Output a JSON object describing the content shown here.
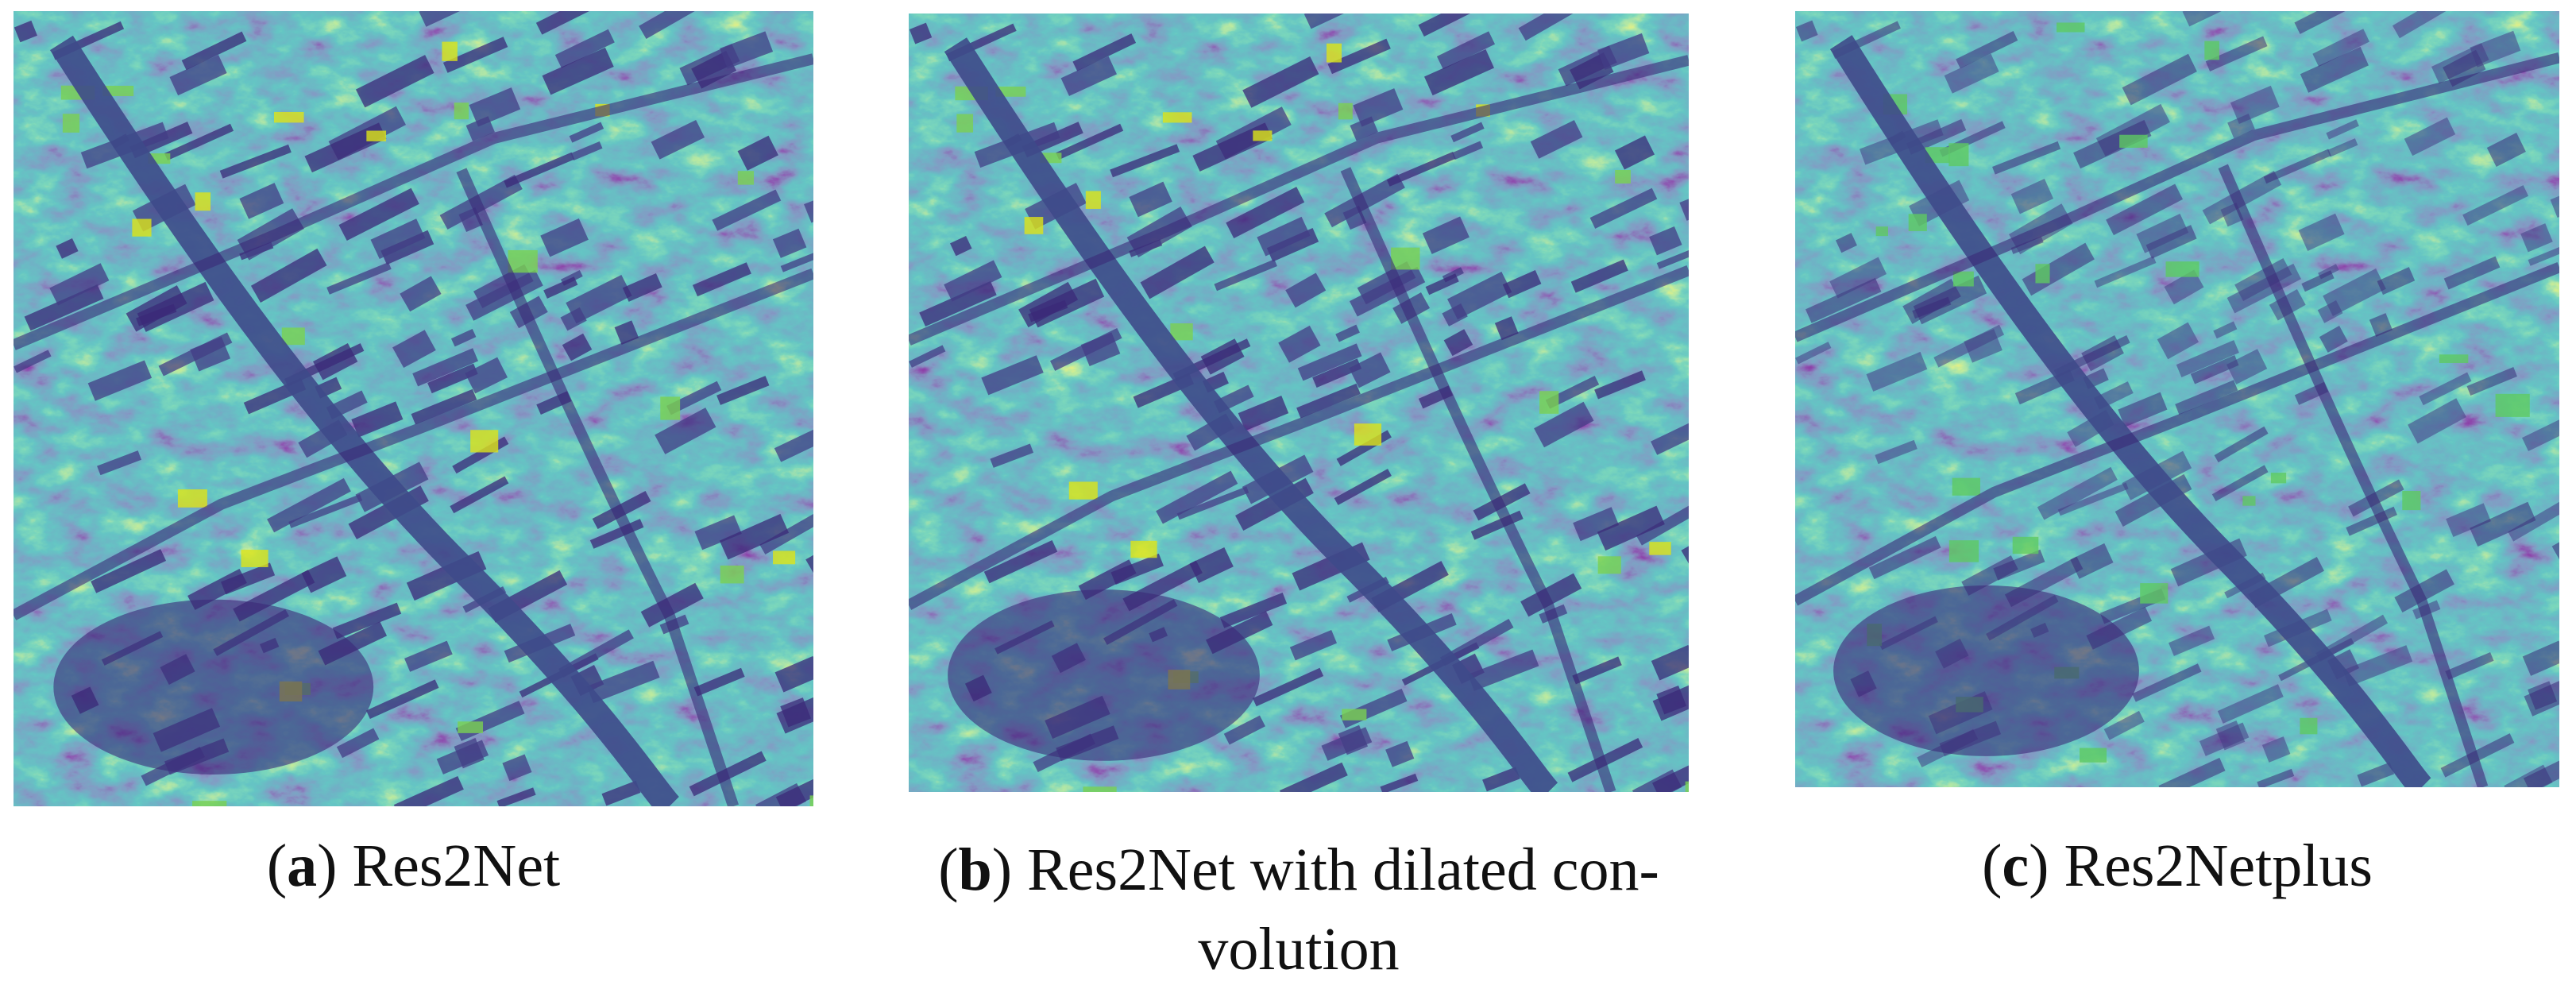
{
  "panels": [
    {
      "caption_lines": [
        [
          {
            "text": "(",
            "bold": false
          },
          {
            "text": "a",
            "bold": true
          },
          {
            "text": ") Res2Net",
            "bold": false
          }
        ]
      ]
    },
    {
      "caption_lines": [
        [
          {
            "text": "(",
            "bold": false
          },
          {
            "text": "b",
            "bold": true
          },
          {
            "text": ") Res2Net with dilated con-",
            "bold": false
          }
        ],
        [
          {
            "text": "volution",
            "bold": false
          }
        ]
      ]
    },
    {
      "caption_lines": [
        [
          {
            "text": "(",
            "bold": false
          },
          {
            "text": "c",
            "bold": true
          },
          {
            "text": ") Res2Netplus",
            "bold": false
          }
        ]
      ]
    }
  ]
}
